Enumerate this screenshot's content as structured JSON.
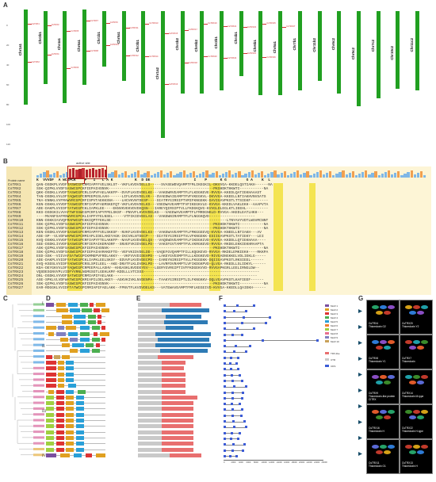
{
  "panels": {
    "a": "A",
    "b": "B",
    "c": "C",
    "d": "D",
    "e": "E",
    "f": "F",
    "g": "G"
  },
  "chromosomes": [
    "Chr1a1",
    "Chr2b1",
    "Chr4a1",
    "Chr6a1",
    "Chr1b1",
    "Chr5a1",
    "Chr3b1",
    "Chr1a2",
    "Chr4b2",
    "Chr6b2",
    "Chr2b1",
    "Chr4b1",
    "Chr6b1",
    "Chr5a1",
    "Chr7b1",
    "Chr11b2",
    "Chr6c2",
    "Chr5c2",
    "Chr7c2",
    "Chr10c2",
    "Chr11c2"
  ],
  "markers": [
    "CsTRX1",
    "CsTRX2",
    "CsTRX3",
    "CsTRX4",
    "CsTRX5",
    "CsTRX6",
    "CsTRX7",
    "CsTRX8",
    "CsTRX9",
    "CsTRX10",
    "CsTRX11",
    "CsTRX12",
    "CsTRX13",
    "CsTRX14",
    "CsTRX15",
    "CsTRX16",
    "CsTRX17",
    "CsTRX18",
    "CsTRX19",
    "CsTRX20",
    "CsTRX21",
    "CsTRX22",
    "CsTRX23",
    "CsTRX24",
    "CsTRX25",
    "CsTRX26",
    "CsTRX27"
  ],
  "y_ticks": [
    "0",
    "20",
    "40",
    "60",
    "80",
    "100",
    "120"
  ],
  "alignment": {
    "active_site_label": "active site",
    "protein_name_header": "Protein name",
    "consensus": "K  VVVDF  A WCGPCK    P   I   L A K          K  D DE                    I    P      K G         G A    K  L",
    "proteins": [
      "CsTRX1",
      "CsTRX2",
      "CsTRX3",
      "CsTRX4",
      "CsTRX5",
      "CsTRX6",
      "CsTRX7",
      "CsTRX8",
      "CsTRX9",
      "CsTRX10",
      "CsTRX11",
      "CsTRX12",
      "CsTRX13",
      "CsTRX14",
      "CsTRX15",
      "CsTRX16",
      "CsTRX17",
      "CsTRX18",
      "CsTRX19",
      "CsTRX20",
      "CsTRX21",
      "CsTRX22",
      "CsTRX23",
      "CsTRX24",
      "CsTRX25",
      "CsTRX26",
      "CsTRX27"
    ],
    "sequences": [
      "QAN-DSDKPLVVDFSASWCGPCRMIAPFFVELSKLST--VKFLKVDVDELLS-----SVASEWDVQAMPTFMLIKEGKIL-DKVVGA-KKDELQSTIAKH------NA",
      "SSK-QIPKLVVDFSASWCGPCKFIEPAIHSNVK------------------------------------------------PKSHDKTHKWTI-----------NA",
      "QKK-DSDKLLVVDFTASWCGPCRLIAPVFAELAKKFP--DVVFLKVDVDELKE---VAKEWRVEAMPTFLFLKDGKEVE-RVVGA-KKEDLQATIEKHAAAST",
      "TAN-DSDKLVVLDFYAQWCGPCRPEEPGSLAAH------LIFLKVDVDELVK---SVAEDWAIEAMPTFVFVKEGKVL-DKVVGA-KKEELLNTIAKHVNVSATS",
      "TKA-ENNKLVVFMAWVRCGPCRFISPVTAEKKSNA----LHCVKVNTDESP----SIATRYGIRSIPTVMIFKNGEKK-DAVIGAVPKSTLTTSIEKF--------",
      "KGN-DSKKLVVVDFTASWCGPCRFIAPVFAEMSKEFQT-VKFLKVDVDELKS---VSEDWAVEAMPTFVFIKEGKVLE-KVVGA-KKEDLVAKLEKH--AAAPVTA",
      "ADE-DAKPLVVIDFYATWCGPCKLIAPKLEE----EKNVKVEKVDVDEQSN---IAREYQIRSIPTVLLFKDGKQVG-KVVGLDLEGLKTLIEEHL----------",
      "KKS-DSDGKILVVAFTWFSSWCGPCRFIAPYFPELSKSF--PNVVFLKVDVDELKS---VAEEWAVEAMPTFLFMRDGNKLD-RVVGA-AKEDLEATLHKH---",
      "----MVANFSAFMSWVRCGPCKLIAPFYFELNSEL-----VTFIKIDVEELAS---VAKEWNIRAMPTFLFLNGGKQVD---------------------",
      "KNN-DSKKIAVVQFMAPWCGPCKKIQPTFEKLSE-----------------------------------------------------LTNYAVYVDTLWSVMCNNT",
      "SSK-QIPKLVVDFSASWCGPCKFIEPAIHSNVK------------------------------------------------PKSHDKTHKWTI-----------NA",
      "SSK-QIPKLVVDFSASWCGPCKFIEPAIHSNVK------------------------------------------------PKSHDKTHKWTI-----------NA",
      "KEN-DSDKLVVVDFSASWCGPCRMIAPFFVELSKKSF--NVKFLKVDVDELKS---VAKEWAVEAMPTFLFMKGGEEVQ-KVVGA-KNEELLNTIAKH---AV",
      "ASE-SP--VLVDFWAPWCGPCRMIAPLIDELAKEYAGK-IKCVKLNTDECP----SIATEYGIRSIPTVLVFKNGEKK-ESIIGAVPKSTLTATIEKY---LEI",
      "KVQ-DSKKLVVVDFTATWCGPCRFIAPYFTELAKKFP--NAVFLKVDVDELQS---VAQEWDVEAMPTFLFIKDGKIVD-KVVGA-KKDDLLQTIEKHAAA----",
      "SGE-DSDKLIVVDFSASWCGPCRFIEPAIKEMADRF--SNVEFVKIDVDELPD---VAKSFGVTAMPTFVLVKRGKEVD-RVVGA-RKDELEKKIEKHRAAPTA",
      "ASK-QIPKLVVDFSASWCGPCKFIEPAIHSNVK------------------------------------------------PKSHDKTHKWTI-----------NA",
      "SSK-QIPKLVVDFSASWCGPCKFIEPAIHAMAKEFTD--VEFVKIDVDELDD---VAQEFGVQAMPTFILLKQGKEVD-RVVGA-RKDELEMKIEKH----RKKPA",
      "EGD-SSK--VIIVAFSATWCGPCKMMEPVFRDLAKKY---VKFVVVDIDEHPD---LAKEYGVESMPTFLLLKDGKEVD-RIVGADNGKKELVDLIEKLG-----",
      "ADE-DAKPLVVIDFYATWCGPCKLIAPKLEELSKSY--EDVVFLKVDVDECPD---IAREYNIRSIPTVLLFKGGEKK-DQIIGAVPKSTLRKSIEEL------",
      "EVQ-KSDSLVVIDFYADWCGPCRSLSPILEEL--AKE-DNVTFLKLDVDKLPD---LAVRFDVRAMPTLVFIKDGKPVD-QLVGA-RKEDLLSLIDKYL------",
      "KDA-DEYGKVVLDFYAQWCGPCRPEEPALLASHV--KHGASKLNVDDEYEV---LGERYGVRGIPTIVFFKDGEKVVD-RVVGAPKGRLLEELIRNGLDW--",
      "VQSDESGNVVPLVIDFYVRNLNGMGSGTLGEHLKMY-KDDLLLVTCSSS-----------------------------------------------------",
      "DNL-DSDKLVVVDFSATWCGPCRMIAPIFAELAKK------------------------------------------------------------------",
      "ASE-SPKLVLVDFWATWCGPCKMIAPILDELAKEY--AGKVKIVKLNVDENPA---TAAKYGIRSIPTLILFKNGKKV-DQLVGAVPKSTLKAFIEEF------",
      "SSK-QIPKLVVDFSASWCGPCKFIEPAIHSNVK------------------------------------------------PKSHDKTHKWTI-----------NA",
      "EAR-RDGGKLVVIDFTATWCGPCRMIAPIFAELAKK--FPNVTFLKVDVDELKS---VATEWAVEAMPTFMFLKEGEIVD-KVVGA-KKEDLLQAIEKH------"
    ]
  },
  "groups": [
    "I",
    "II",
    "III",
    "IV"
  ],
  "motif_legend": [
    "Motif 1",
    "Motif 2",
    "Motif 3",
    "Motif 4",
    "Motif 5",
    "Motif 6",
    "Motif 7",
    "Motif 8",
    "Motif 9",
    "Motif 10"
  ],
  "motif_colors": [
    "#7b4fa0",
    "#e0a020",
    "#d33",
    "#4caf50",
    "#2aa0d8",
    "#f08030",
    "#a0d040",
    "#e86f8f",
    "#8080c0",
    "#c9a25a"
  ],
  "domain_legend": [
    "TRX-like",
    "UTR",
    "CDS"
  ],
  "gene_axis": [
    "0",
    "2000",
    "4000",
    "6000",
    "8000",
    "10000",
    "12000",
    "14000",
    "16000",
    "18000",
    "20000",
    "22000",
    "24000",
    "26000"
  ],
  "structures": [
    {
      "id": "CsTRX4",
      "label": "Thioredoxin O2"
    },
    {
      "id": "CsTRX20",
      "label": "Thioredoxin Y2"
    },
    {
      "id": "CsTRX8",
      "label": "Thioredoxin Y1"
    },
    {
      "id": "CsTRX7",
      "label": "Thioredoxin"
    },
    {
      "id": "CsTRX9",
      "label": "Thioredoxin-like protein CITRX"
    },
    {
      "id": "CsTRX14",
      "label": "Thioredoxin M-type"
    },
    {
      "id": "CsTRX16",
      "label": "Thioredoxin H"
    },
    {
      "id": "CsTRX22",
      "label": "Thioredoxin H-type"
    },
    {
      "id": "CsTRX11",
      "label": "Thioredoxin O1"
    },
    {
      "id": "CsTRX13",
      "label": "Thioredoxin H"
    }
  ]
}
